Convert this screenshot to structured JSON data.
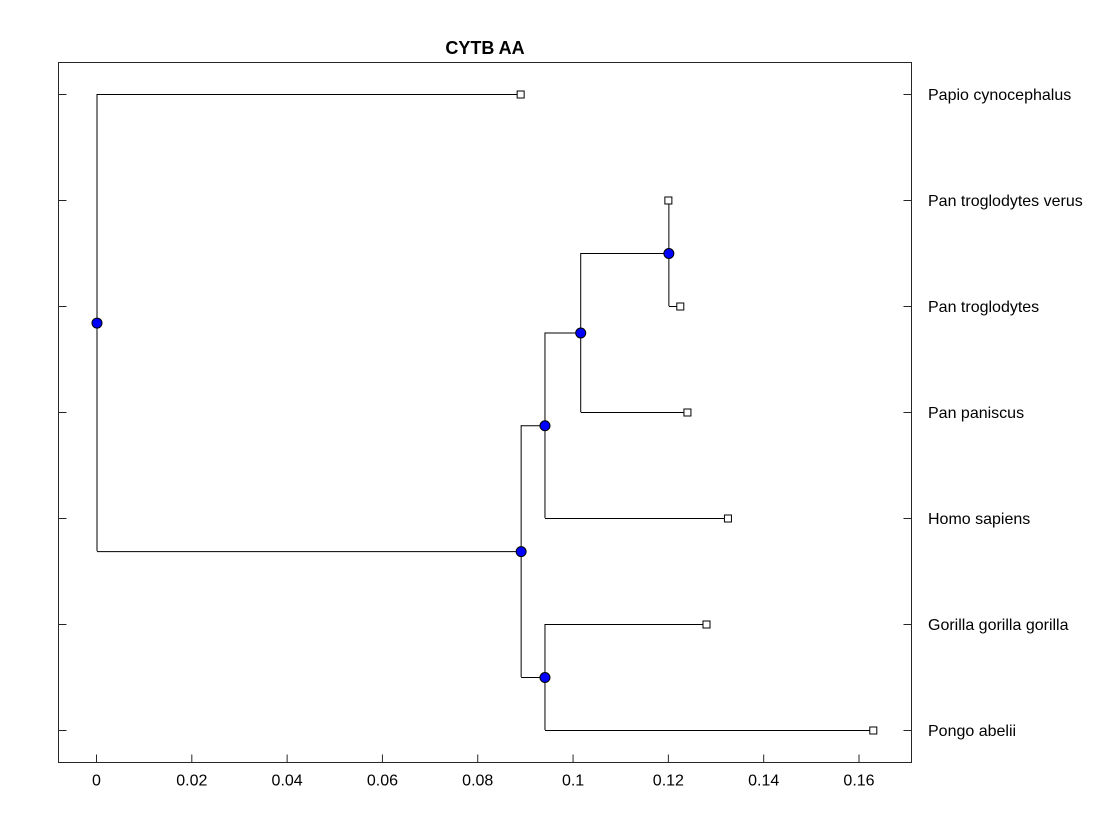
{
  "chart_data": {
    "type": "dendrogram",
    "title": "CYTB AA",
    "xlabel": "",
    "ylabel": "",
    "xlim": [
      -0.008,
      0.171
    ],
    "x_ticks": [
      0,
      0.02,
      0.04,
      0.06,
      0.08,
      0.1,
      0.12,
      0.14,
      0.16
    ],
    "x_tick_labels": [
      "0",
      "0.02",
      "0.04",
      "0.06",
      "0.08",
      "0.1",
      "0.12",
      "0.14",
      "0.16"
    ],
    "grid": false,
    "leaves": [
      {
        "name": "Papio cynocephalus",
        "x": 0.089
      },
      {
        "name": "Pan troglodytes verus",
        "x": 0.12
      },
      {
        "name": "Pan troglodytes",
        "x": 0.1225
      },
      {
        "name": "Pan paniscus",
        "x": 0.124
      },
      {
        "name": "Homo sapiens",
        "x": 0.1325
      },
      {
        "name": "Gorilla gorilla gorilla",
        "x": 0.128
      },
      {
        "name": "Pongo abelii",
        "x": 0.163
      }
    ],
    "nodes": [
      {
        "id": "n_root",
        "x": 0.0,
        "children": [
          "L0",
          "n_b"
        ]
      },
      {
        "id": "n_b",
        "x": 0.089,
        "children": [
          "n_c",
          "n_g"
        ]
      },
      {
        "id": "n_c",
        "x": 0.094,
        "children": [
          "n_d",
          "L4"
        ]
      },
      {
        "id": "n_d",
        "x": 0.1015,
        "children": [
          "n_e",
          "L3"
        ]
      },
      {
        "id": "n_e",
        "x": 0.12,
        "children": [
          "L1",
          "L2"
        ]
      },
      {
        "id": "n_g",
        "x": 0.094,
        "children": [
          "L5",
          "L6"
        ]
      }
    ],
    "colors": {
      "node_fill": "#0000ff",
      "leaf_fill": "#ffffff",
      "line": "#000000"
    }
  }
}
